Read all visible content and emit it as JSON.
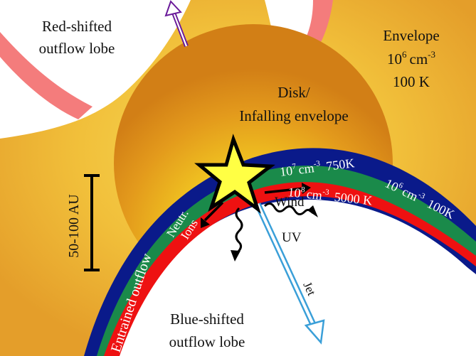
{
  "labels": {
    "red_lobe_line1": "Red-shifted",
    "red_lobe_line2": "outflow lobe",
    "envelope_line1": "Envelope",
    "envelope_density_base": "10",
    "envelope_density_exp": "6",
    "envelope_density_unit": "cm",
    "envelope_density_unit_exp": "-3",
    "envelope_temp": "100 K",
    "disk_line1": "Disk/",
    "disk_line2": "Infalling envelope",
    "scale": "50-100 AU",
    "green_density_base": "10",
    "green_density_exp": "7",
    "green_density_unit": "cm",
    "green_density_unit_exp": "-3",
    "green_temp": "750K",
    "red_density_base": "10",
    "red_density_exp": "8",
    "red_density_unit": "cm",
    "red_density_unit_exp": "-3",
    "red_temp": "5000 K",
    "blue_density_base": "10",
    "blue_density_exp": "6",
    "blue_density_unit": "cm",
    "blue_density_unit_exp": "-3",
    "blue_temp": "100K",
    "neutr": "Neutr.",
    "ions": "Ions",
    "wind": "Wind",
    "uv": "UV",
    "jet": "Jet",
    "entrained": "Entrained outflow",
    "blue_lobe_line1": "Blue-shifted",
    "blue_lobe_line2": "outflow lobe"
  },
  "colors": {
    "envelope_outer": "#e5a630",
    "envelope_inner": "#f6d24a",
    "sphere_center": "#ffff40",
    "sphere_edge": "#d9851a",
    "cavity_wall": "#f47c7c",
    "blue_layer": "#0a1a8a",
    "green_layer": "#1a8a4a",
    "red_layer": "#ee1111",
    "star_fill": "#ffff44",
    "jet_arrow": "#3a9fd8",
    "red_lobe_arrow": "#6a1a9a"
  }
}
